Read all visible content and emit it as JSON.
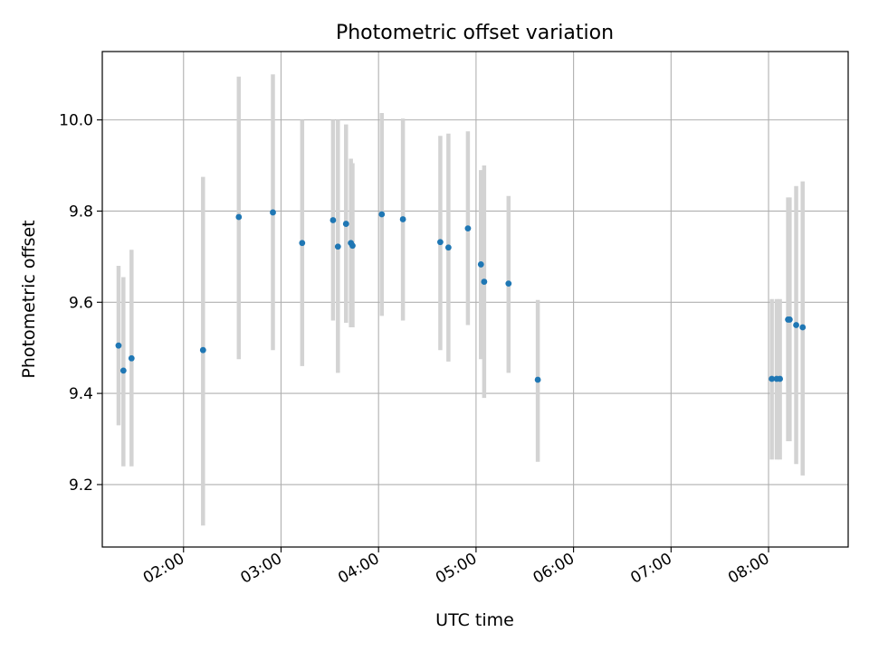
{
  "chart_data": {
    "type": "scatter",
    "title": "Photometric offset variation",
    "xlabel": "UTC time",
    "ylabel": "Photometric offset",
    "x_ticks": [
      "02:00",
      "03:00",
      "04:00",
      "05:00",
      "06:00",
      "07:00",
      "08:00"
    ],
    "y_ticks": [
      "9.2",
      "9.4",
      "9.6",
      "9.8",
      "10.0"
    ],
    "xlim": [
      "01:10",
      "08:49"
    ],
    "ylim": [
      9.063,
      10.15
    ],
    "grid": true,
    "colors": {
      "point": "#1f77b4",
      "errorbar": "#d3d3d3",
      "grid": "#b0b0b0"
    },
    "series": [
      {
        "points": [
          {
            "x": "01:20",
            "y": 9.505,
            "ylow": 9.33,
            "yhigh": 9.68
          },
          {
            "x": "01:23",
            "y": 9.45,
            "ylow": 9.24,
            "yhigh": 9.655
          },
          {
            "x": "01:28",
            "y": 9.477,
            "ylow": 9.24,
            "yhigh": 9.715
          },
          {
            "x": "02:12",
            "y": 9.495,
            "ylow": 9.11,
            "yhigh": 9.875
          },
          {
            "x": "02:34",
            "y": 9.787,
            "ylow": 9.475,
            "yhigh": 10.095
          },
          {
            "x": "02:55",
            "y": 9.797,
            "ylow": 9.495,
            "yhigh": 10.1
          },
          {
            "x": "03:13",
            "y": 9.73,
            "ylow": 9.46,
            "yhigh": 10.0
          },
          {
            "x": "03:32",
            "y": 9.78,
            "ylow": 9.56,
            "yhigh": 10.0
          },
          {
            "x": "03:35",
            "y": 9.722,
            "ylow": 9.445,
            "yhigh": 10.0
          },
          {
            "x": "03:40",
            "y": 9.772,
            "ylow": 9.555,
            "yhigh": 9.99
          },
          {
            "x": "03:43",
            "y": 9.73,
            "ylow": 9.545,
            "yhigh": 9.915
          },
          {
            "x": "03:44",
            "y": 9.724,
            "ylow": 9.545,
            "yhigh": 9.905
          },
          {
            "x": "04:02",
            "y": 9.793,
            "ylow": 9.57,
            "yhigh": 10.015
          },
          {
            "x": "04:15",
            "y": 9.782,
            "ylow": 9.56,
            "yhigh": 10.003
          },
          {
            "x": "04:38",
            "y": 9.732,
            "ylow": 9.495,
            "yhigh": 9.965
          },
          {
            "x": "04:43",
            "y": 9.72,
            "ylow": 9.47,
            "yhigh": 9.97
          },
          {
            "x": "04:55",
            "y": 9.762,
            "ylow": 9.55,
            "yhigh": 9.975
          },
          {
            "x": "05:03",
            "y": 9.683,
            "ylow": 9.475,
            "yhigh": 9.89
          },
          {
            "x": "05:05",
            "y": 9.645,
            "ylow": 9.39,
            "yhigh": 9.9
          },
          {
            "x": "05:20",
            "y": 9.641,
            "ylow": 9.445,
            "yhigh": 9.833
          },
          {
            "x": "05:38",
            "y": 9.43,
            "ylow": 9.25,
            "yhigh": 9.605
          },
          {
            "x": "08:02",
            "y": 9.432,
            "ylow": 9.255,
            "yhigh": 9.607
          },
          {
            "x": "08:05",
            "y": 9.432,
            "ylow": 9.255,
            "yhigh": 9.607
          },
          {
            "x": "08:07",
            "y": 9.432,
            "ylow": 9.255,
            "yhigh": 9.607
          },
          {
            "x": "08:12",
            "y": 9.562,
            "ylow": 9.295,
            "yhigh": 9.83
          },
          {
            "x": "08:13",
            "y": 9.562,
            "ylow": 9.295,
            "yhigh": 9.83
          },
          {
            "x": "08:17",
            "y": 9.55,
            "ylow": 9.245,
            "yhigh": 9.855
          },
          {
            "x": "08:21",
            "y": 9.545,
            "ylow": 9.22,
            "yhigh": 9.865
          }
        ]
      }
    ]
  }
}
